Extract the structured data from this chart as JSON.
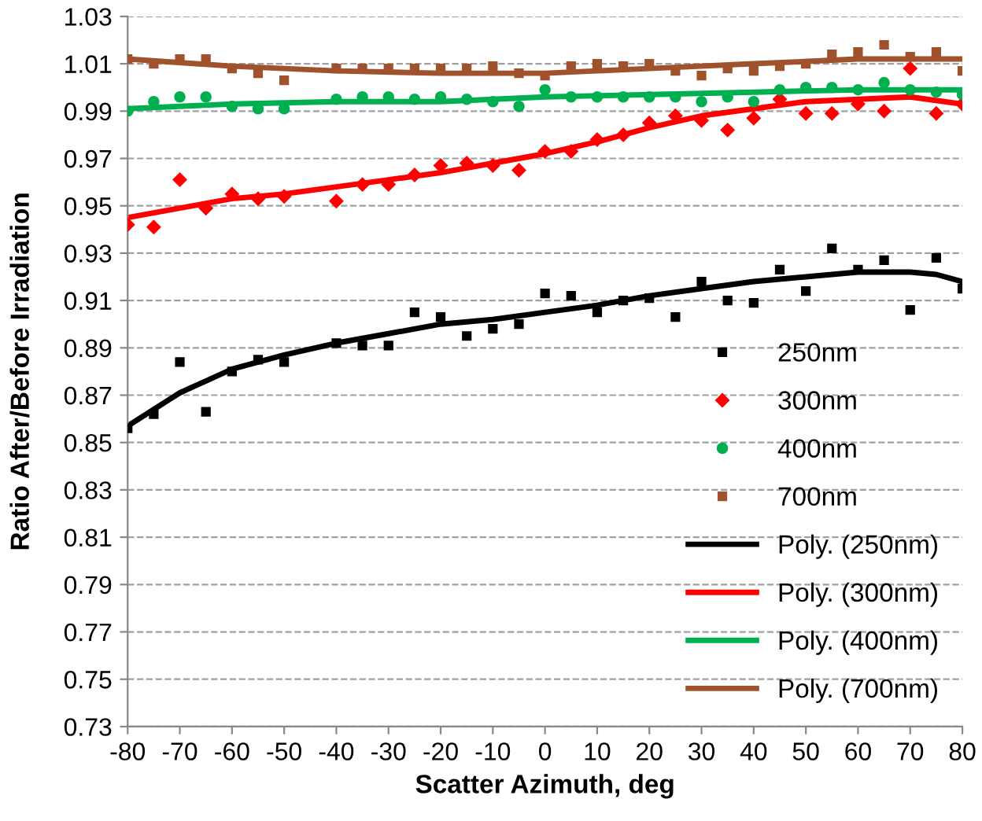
{
  "chart_data": {
    "type": "scatter",
    "xlabel": "Scatter Azimuth, deg",
    "ylabel": "Ratio After/Before Irradiation",
    "xlim": [
      -80,
      80
    ],
    "xticks": [
      -80,
      -70,
      -60,
      -50,
      -40,
      -30,
      -20,
      -10,
      0,
      10,
      20,
      30,
      40,
      50,
      60,
      70,
      80
    ],
    "ylim": [
      0.73,
      1.03
    ],
    "yticks": [
      0.73,
      0.75,
      0.77,
      0.79,
      0.81,
      0.83,
      0.85,
      0.87,
      0.89,
      0.91,
      0.93,
      0.95,
      0.97,
      0.99,
      1.01,
      1.03
    ],
    "grid": "y",
    "legend": "bottom right",
    "x": [
      -80,
      -75,
      -70,
      -65,
      -60,
      -55,
      -50,
      -40,
      -35,
      -30,
      -25,
      -20,
      -15,
      -10,
      -5,
      0,
      5,
      10,
      15,
      20,
      25,
      30,
      35,
      40,
      45,
      50,
      55,
      60,
      65,
      70,
      75,
      80
    ],
    "series": [
      {
        "name": "250nm",
        "marker": "square",
        "color": "#000000",
        "values": [
          0.856,
          0.862,
          0.884,
          0.863,
          0.88,
          0.885,
          0.884,
          0.892,
          0.891,
          0.891,
          0.905,
          0.903,
          0.895,
          0.898,
          0.9,
          0.913,
          0.912,
          0.905,
          0.91,
          0.911,
          0.903,
          0.918,
          0.91,
          0.909,
          0.923,
          0.914,
          0.932,
          0.923,
          0.927,
          0.906,
          0.928,
          0.915
        ]
      },
      {
        "name": "300nm",
        "marker": "diamond",
        "color": "#ff0000",
        "values": [
          0.942,
          0.941,
          0.961,
          0.949,
          0.955,
          0.953,
          0.954,
          0.952,
          0.959,
          0.959,
          0.963,
          0.967,
          0.968,
          0.967,
          0.965,
          0.973,
          0.973,
          0.978,
          0.98,
          0.985,
          0.988,
          0.986,
          0.982,
          0.987,
          0.995,
          0.989,
          0.989,
          0.993,
          0.99,
          1.008,
          0.989,
          0.993
        ]
      },
      {
        "name": "400nm",
        "marker": "circle",
        "color": "#00b050",
        "values": [
          0.99,
          0.994,
          0.996,
          0.996,
          0.992,
          0.991,
          0.991,
          0.995,
          0.996,
          0.996,
          0.995,
          0.996,
          0.995,
          0.994,
          0.992,
          0.999,
          0.996,
          0.996,
          0.996,
          0.996,
          0.996,
          0.994,
          0.996,
          0.994,
          0.999,
          1.0,
          1.0,
          0.999,
          1.002,
          0.999,
          0.998,
          0.997
        ]
      },
      {
        "name": "700nm",
        "marker": "square",
        "color": "#a0522d",
        "values": [
          1.012,
          1.01,
          1.012,
          1.012,
          1.008,
          1.006,
          1.003,
          1.008,
          1.008,
          1.008,
          1.008,
          1.008,
          1.008,
          1.009,
          1.006,
          1.005,
          1.009,
          1.01,
          1.009,
          1.01,
          1.007,
          1.005,
          1.008,
          1.007,
          1.009,
          1.01,
          1.014,
          1.015,
          1.018,
          1.013,
          1.015,
          1.007
        ]
      },
      {
        "name": "Poly. (250nm)",
        "type": "line",
        "marker": "none",
        "color": "#000000",
        "x": [
          -80,
          -70,
          -60,
          -50,
          -40,
          -30,
          -20,
          -10,
          0,
          10,
          20,
          30,
          40,
          50,
          60,
          70,
          75,
          80
        ],
        "values": [
          0.857,
          0.871,
          0.881,
          0.887,
          0.892,
          0.896,
          0.9,
          0.902,
          0.905,
          0.908,
          0.912,
          0.915,
          0.918,
          0.92,
          0.922,
          0.922,
          0.921,
          0.918
        ]
      },
      {
        "name": "Poly. (300nm)",
        "type": "line",
        "marker": "none",
        "color": "#ff0000",
        "x": [
          -80,
          -70,
          -60,
          -50,
          -40,
          -30,
          -20,
          -10,
          0,
          10,
          20,
          30,
          40,
          50,
          60,
          70,
          80
        ],
        "values": [
          0.945,
          0.949,
          0.953,
          0.955,
          0.958,
          0.961,
          0.964,
          0.968,
          0.972,
          0.977,
          0.983,
          0.988,
          0.991,
          0.994,
          0.995,
          0.996,
          0.993
        ]
      },
      {
        "name": "Poly. (400nm)",
        "type": "line",
        "marker": "none",
        "color": "#00b050",
        "x": [
          -80,
          -60,
          -40,
          -20,
          0,
          20,
          40,
          60,
          80
        ],
        "values": [
          0.991,
          0.993,
          0.994,
          0.994,
          0.996,
          0.997,
          0.998,
          0.999,
          0.999
        ]
      },
      {
        "name": "Poly. (700nm)",
        "type": "line",
        "marker": "none",
        "color": "#a0522d",
        "x": [
          -80,
          -60,
          -40,
          -20,
          0,
          20,
          40,
          60,
          80
        ],
        "values": [
          1.012,
          1.009,
          1.007,
          1.006,
          1.006,
          1.008,
          1.01,
          1.012,
          1.012
        ]
      }
    ]
  }
}
